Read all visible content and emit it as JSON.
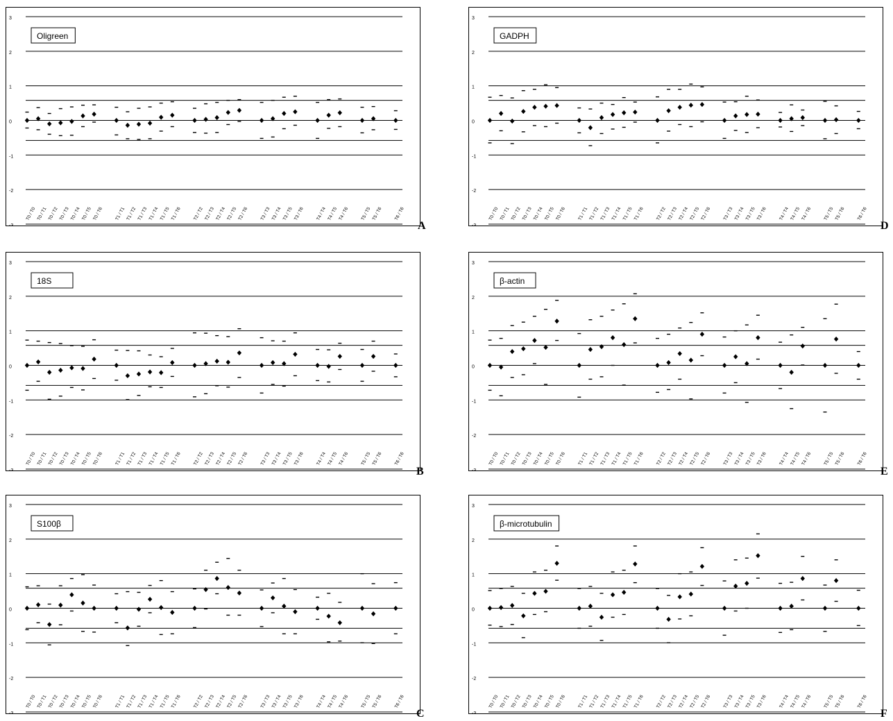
{
  "panel_letters": [
    "A",
    "B",
    "C",
    "D",
    "E",
    "F"
  ],
  "comparison_labels": [
    "T0 / T0",
    "T0 / T1",
    "T0 / T2",
    "T0 / T3",
    "T0 / T4",
    "T0 / T5",
    "T0 / T6",
    "T1 / T1",
    "T1 / T2",
    "T1 / T3",
    "T1 / T4",
    "T1 / T5",
    "T1 / T6",
    "T2 / T2",
    "T2 / T3",
    "T2 / T4",
    "T2 / T5",
    "T2 / T6",
    "T3 / T3",
    "T3 / T4",
    "T3 / T5",
    "T3 / T6",
    "T4 / T4",
    "T4 / T5",
    "T4 / T6",
    "T5 / T5",
    "T5 / T6",
    "T6 / T6"
  ],
  "chart_data": [
    {
      "type": "scatter",
      "title": "Oligreen",
      "letter": "A",
      "ylim": [
        -3,
        3
      ],
      "yticks": [
        -3,
        -2,
        -1,
        0,
        1,
        2,
        3
      ],
      "reference_lines": [
        -3,
        -2,
        -1,
        -0.58,
        0,
        0.58,
        1,
        2,
        3
      ],
      "grid": true,
      "means": [
        0,
        0.05,
        -0.1,
        -0.07,
        -0.03,
        0.13,
        0.18,
        0,
        -0.14,
        -0.11,
        -0.08,
        0.09,
        0.15,
        0,
        0.03,
        0.08,
        0.23,
        0.29,
        0,
        0.05,
        0.2,
        0.25,
        0,
        0.15,
        0.22,
        0,
        0.05,
        0
      ],
      "upper": [
        0.24,
        0.37,
        0.2,
        0.34,
        0.39,
        0.44,
        0.45,
        0.38,
        0.25,
        0.35,
        0.39,
        0.5,
        0.54,
        0.35,
        0.48,
        0.52,
        0.58,
        0.6,
        0.52,
        0.58,
        0.67,
        0.7,
        0.52,
        0.6,
        0.62,
        0.38,
        0.4,
        0.28
      ],
      "lower": [
        -0.22,
        -0.27,
        -0.4,
        -0.44,
        -0.43,
        -0.18,
        -0.05,
        -0.42,
        -0.53,
        -0.55,
        -0.53,
        -0.31,
        -0.18,
        -0.35,
        -0.37,
        -0.35,
        -0.12,
        -0.03,
        -0.52,
        -0.48,
        -0.24,
        -0.14,
        -0.52,
        -0.23,
        -0.18,
        -0.36,
        -0.27,
        -0.26
      ]
    },
    {
      "type": "scatter",
      "title": "18S",
      "letter": "B",
      "ylim": [
        -3,
        3
      ],
      "yticks": [
        -3,
        -2,
        -1,
        0,
        1,
        2,
        3
      ],
      "reference_lines": [
        -3,
        -2,
        -1,
        -0.58,
        0,
        0.58,
        1,
        2,
        3
      ],
      "grid": true,
      "means": [
        0,
        0.1,
        -0.2,
        -0.14,
        -0.07,
        -0.09,
        0.18,
        0,
        -0.3,
        -0.25,
        -0.19,
        -0.21,
        0.08,
        0,
        0.05,
        0.12,
        0.09,
        0.36,
        0,
        0.08,
        0.05,
        0.32,
        0,
        -0.03,
        0.26,
        0,
        0.26,
        0
      ],
      "upper": [
        0.73,
        0.7,
        0.66,
        0.63,
        0.57,
        0.55,
        0.74,
        0.44,
        0.43,
        0.42,
        0.3,
        0.25,
        0.49,
        0.94,
        0.93,
        0.86,
        0.83,
        1.06,
        0.8,
        0.71,
        0.7,
        0.94,
        0.46,
        0.45,
        0.64,
        0.46,
        0.7,
        0.33
      ],
      "lower": [
        -0.72,
        -0.46,
        -0.98,
        -0.89,
        -0.64,
        -0.71,
        -0.38,
        -0.43,
        -0.99,
        -0.87,
        -0.62,
        -0.64,
        -0.32,
        -0.91,
        -0.82,
        -0.59,
        -0.63,
        -0.35,
        -0.8,
        -0.55,
        -0.6,
        -0.3,
        -0.44,
        -0.48,
        -0.12,
        -0.46,
        -0.17,
        -0.33
      ]
    },
    {
      "type": "scatter",
      "title": "S100β",
      "letter": "C",
      "ylim": [
        -3,
        3
      ],
      "yticks": [
        -3,
        -2,
        -1,
        0,
        1,
        2,
        3
      ],
      "reference_lines": [
        -3,
        -2,
        -1,
        -0.58,
        0,
        0.58,
        1,
        2,
        3
      ],
      "grid": true,
      "means": [
        0,
        0.1,
        -0.47,
        0.09,
        0.39,
        0.15,
        0,
        0,
        -0.57,
        -0.03,
        0.26,
        0.02,
        -0.12,
        0,
        0.54,
        0.86,
        0.6,
        0.44,
        0,
        0.3,
        0.06,
        -0.1,
        0,
        -0.23,
        -0.42,
        0,
        -0.16,
        0
      ],
      "upper": [
        0.62,
        0.65,
        0.12,
        0.65,
        0.86,
        0.97,
        0.67,
        0.42,
        0.48,
        0.46,
        0.66,
        0.8,
        0.48,
        0.56,
        1.1,
        1.33,
        1.44,
        1.1,
        0.53,
        0.73,
        0.86,
        0.54,
        0.32,
        0.43,
        0.17,
        1,
        0.71,
        0.74
      ],
      "lower": [
        -0.62,
        -0.42,
        -1.06,
        -0.48,
        -0.08,
        -0.67,
        -0.69,
        -0.42,
        -1.08,
        -0.52,
        -0.13,
        -0.76,
        -0.74,
        -0.56,
        -0.02,
        0.42,
        -0.2,
        -0.2,
        -0.53,
        -0.13,
        -0.74,
        -0.74,
        -0.32,
        -0.97,
        -0.95,
        -1,
        -1.02,
        -0.74
      ]
    },
    {
      "type": "scatter",
      "title": "GADPH",
      "letter": "D",
      "ylim": [
        -3,
        3
      ],
      "yticks": [
        -3,
        -2,
        -1,
        0,
        1,
        2,
        3
      ],
      "reference_lines": [
        -3,
        -2,
        -1,
        -0.58,
        0,
        0.58,
        1,
        2,
        3
      ],
      "grid": true,
      "means": [
        0,
        0.2,
        -0.02,
        0.26,
        0.38,
        0.41,
        0.43,
        0,
        -0.21,
        0.08,
        0.17,
        0.22,
        0.24,
        0,
        0.28,
        0.38,
        0.44,
        0.46,
        0,
        0.13,
        0.17,
        0.18,
        0,
        0.05,
        0.08,
        0,
        0.02,
        0
      ],
      "upper": [
        0.67,
        0.72,
        0.65,
        0.86,
        0.9,
        1.03,
        0.95,
        0.36,
        0.33,
        0.5,
        0.46,
        0.66,
        0.53,
        0.68,
        0.9,
        0.9,
        1.05,
        0.97,
        0.53,
        0.54,
        0.7,
        0.59,
        0.23,
        0.45,
        0.3,
        0.55,
        0.42,
        0.26
      ],
      "lower": [
        -0.65,
        -0.3,
        -0.67,
        -0.33,
        -0.15,
        -0.18,
        -0.08,
        -0.36,
        -0.73,
        -0.38,
        -0.25,
        -0.2,
        -0.05,
        -0.65,
        -0.31,
        -0.12,
        -0.18,
        -0.04,
        -0.52,
        -0.29,
        -0.35,
        -0.21,
        -0.19,
        -0.32,
        -0.15,
        -0.53,
        -0.38,
        -0.24
      ]
    },
    {
      "type": "scatter",
      "title": "β-actin",
      "letter": "E",
      "ylim": [
        -3,
        3
      ],
      "yticks": [
        -3,
        -2,
        -1,
        0,
        1,
        2,
        3
      ],
      "reference_lines": [
        -3,
        -2,
        -1,
        -0.58,
        0,
        0.58,
        1,
        2,
        3
      ],
      "grid": true,
      "means": [
        0,
        -0.05,
        0.4,
        0.48,
        0.72,
        0.52,
        1.28,
        0,
        0.46,
        0.54,
        0.8,
        0.6,
        1.35,
        0,
        0.08,
        0.34,
        0.15,
        0.9,
        0,
        0.25,
        0.05,
        0.8,
        0,
        -0.2,
        0.56,
        0,
        0.76,
        0
      ],
      "upper": [
        0.73,
        0.78,
        1.15,
        1.25,
        1.42,
        1.62,
        1.88,
        0.92,
        1.32,
        1.42,
        1.6,
        1.78,
        2.07,
        0.78,
        0.9,
        1.08,
        1.24,
        1.52,
        0.82,
        1.0,
        1.17,
        1.45,
        0.67,
        0.88,
        1.1,
        1.35,
        1.77,
        0.4
      ],
      "lower": [
        -0.72,
        -0.88,
        -0.35,
        -0.27,
        0.05,
        -0.55,
        0.72,
        -0.92,
        -0.4,
        -0.33,
        0,
        -0.57,
        0.65,
        -0.78,
        -0.7,
        -0.4,
        -0.97,
        0.28,
        -0.8,
        -0.5,
        -1.07,
        0.18,
        -0.67,
        -1.25,
        0.01,
        -1.35,
        -0.23,
        -0.4
      ]
    },
    {
      "type": "scatter",
      "title": "β-microtubulin",
      "letter": "F",
      "ylim": [
        -3,
        3
      ],
      "yticks": [
        -3,
        -2,
        -1,
        0,
        1,
        2,
        3
      ],
      "reference_lines": [
        -3,
        -2,
        -1,
        -0.58,
        0,
        0.58,
        1,
        2,
        3
      ],
      "grid": true,
      "means": [
        0,
        0.02,
        0.08,
        -0.22,
        0.43,
        0.49,
        1.3,
        0,
        0.06,
        -0.26,
        0.39,
        0.46,
        1.28,
        0,
        -0.32,
        0.33,
        0.41,
        1.21,
        0,
        0.64,
        0.72,
        1.52,
        0,
        0.06,
        0.86,
        0,
        0.8,
        0
      ],
      "upper": [
        0.51,
        0.57,
        0.63,
        0.43,
        1.05,
        1.1,
        1.8,
        0.57,
        0.63,
        0.43,
        1.05,
        1.1,
        1.8,
        0.57,
        0.37,
        1.0,
        1.05,
        1.75,
        0.79,
        1.4,
        1.45,
        2.15,
        0.72,
        0.75,
        1.5,
        0.67,
        1.4,
        0.52
      ],
      "lower": [
        -0.49,
        -0.53,
        -0.47,
        -0.85,
        -0.18,
        -0.1,
        0.81,
        -0.58,
        -0.52,
        -0.93,
        -0.26,
        -0.18,
        0.74,
        -0.58,
        -1.0,
        -0.31,
        -0.22,
        0.66,
        -0.78,
        -0.08,
        0,
        0.87,
        -0.7,
        -0.62,
        0.24,
        -0.67,
        0.2,
        -0.5
      ]
    }
  ]
}
